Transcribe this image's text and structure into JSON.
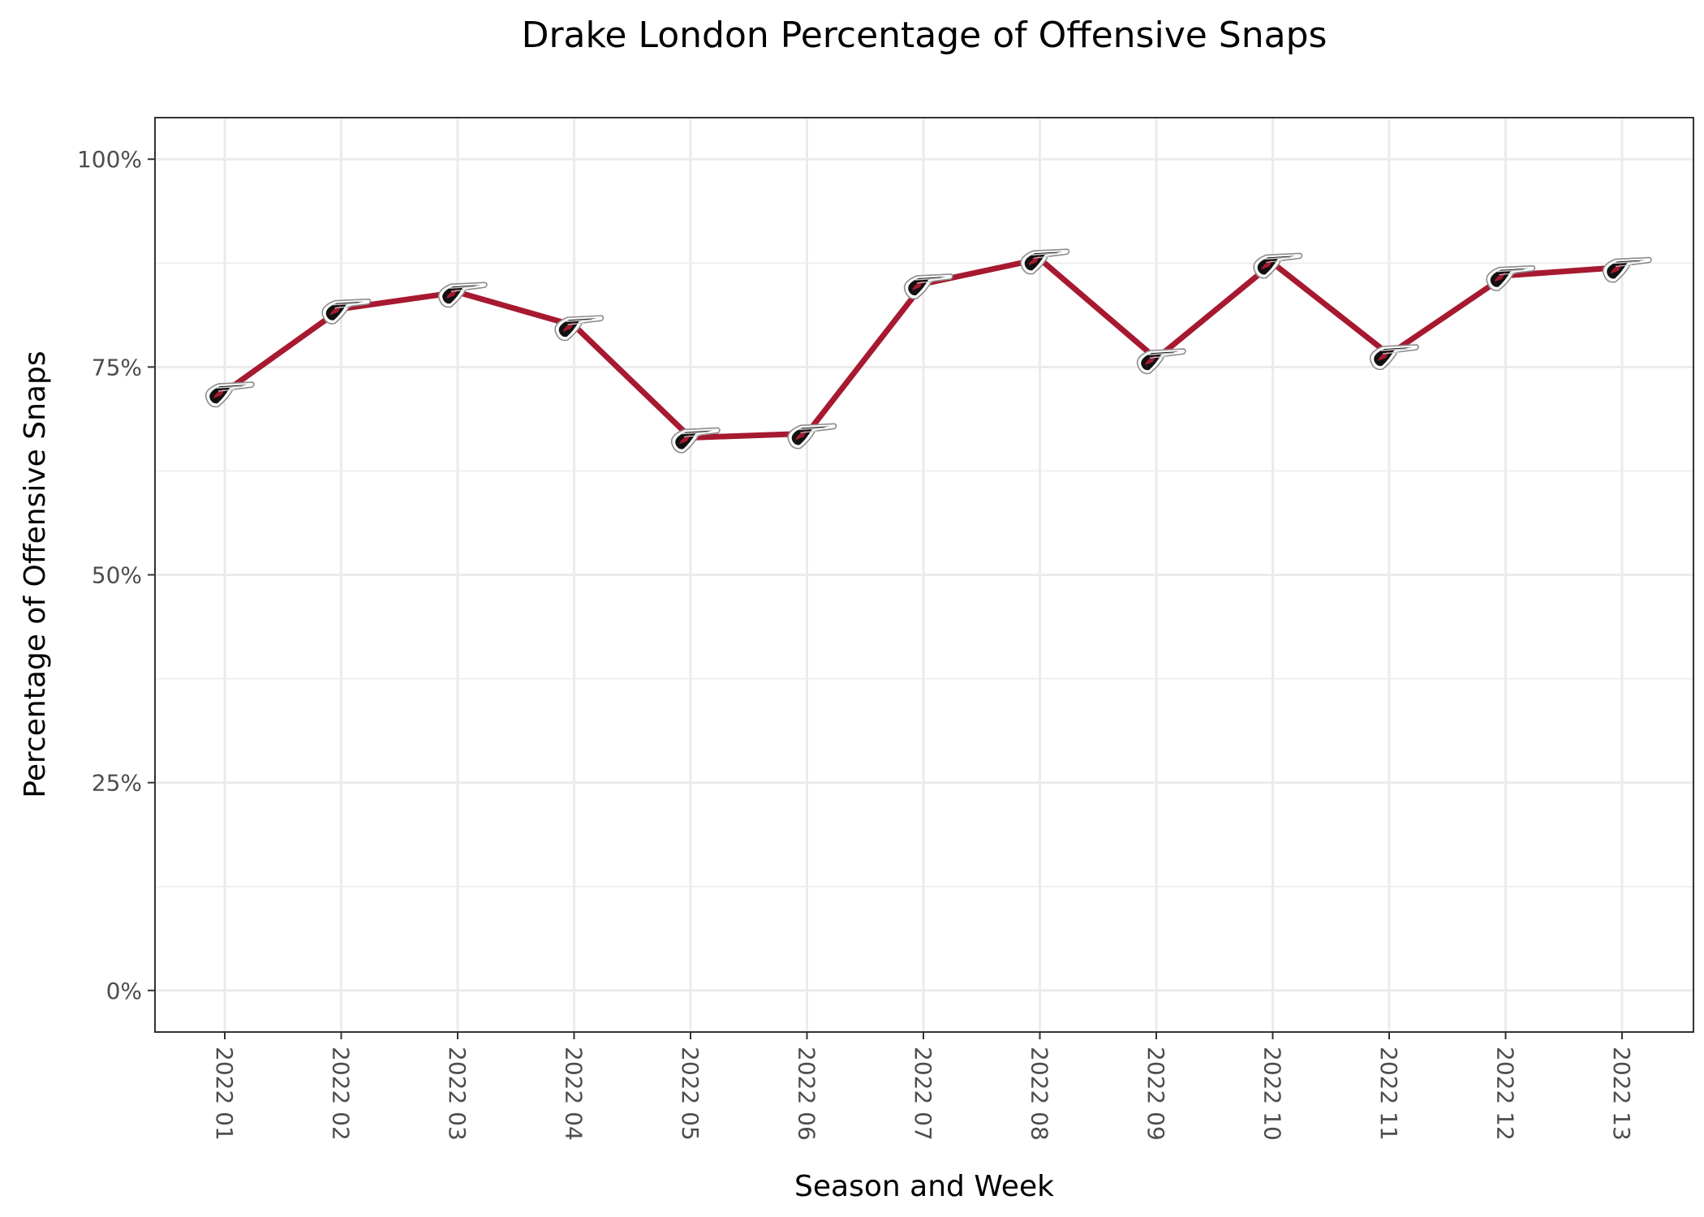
{
  "chart_data": {
    "type": "line",
    "title": "Drake London Percentage of Offensive Snaps",
    "xlabel": "Season and Week",
    "ylabel": "Percentage of Offensive Snaps",
    "categories": [
      "2022 01",
      "2022 02",
      "2022 03",
      "2022 04",
      "2022 05",
      "2022 06",
      "2022 07",
      "2022 08",
      "2022 09",
      "2022 10",
      "2022 11",
      "2022 12",
      "2022 13"
    ],
    "series": [
      {
        "values": [
          0.72,
          0.82,
          0.84,
          0.8,
          0.665,
          0.67,
          0.85,
          0.88,
          0.76,
          0.875,
          0.765,
          0.86,
          0.87
        ],
        "color": "#a71930",
        "marker_icon": "falcons-logo-icon"
      }
    ],
    "ylim": [
      -0.05,
      1.05
    ],
    "yticks": [
      0,
      0.25,
      0.5,
      0.75,
      1.0
    ],
    "ytick_labels": [
      "0%",
      "25%",
      "50%",
      "75%",
      "100%"
    ],
    "grid": true,
    "legend": "none"
  }
}
